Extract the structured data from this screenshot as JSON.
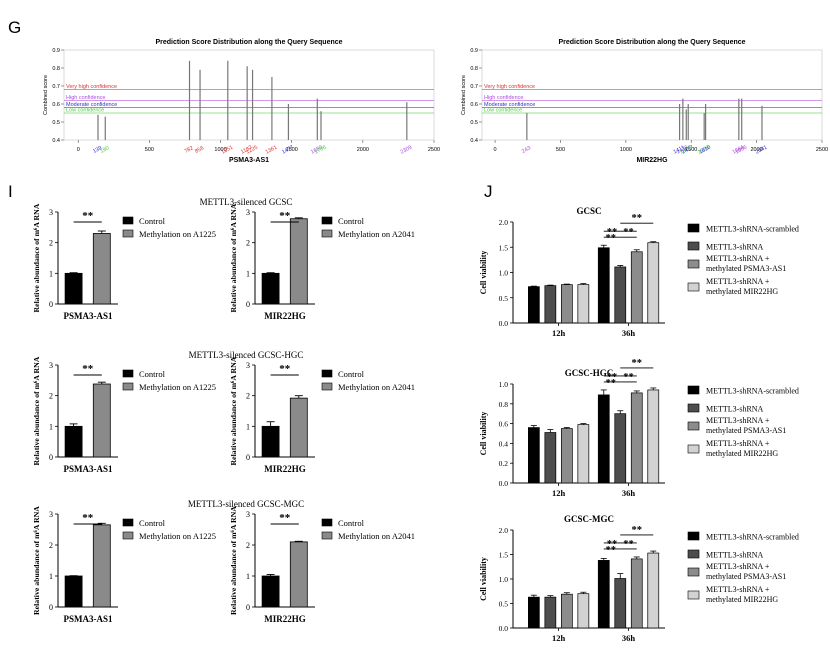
{
  "panel_letters": {
    "G": "G",
    "I": "I",
    "J": "J"
  },
  "chart_data": [
    {
      "id": "G1",
      "type": "line",
      "title": "Prediction Score Distribution along the Query Sequence",
      "xlabel": "PSMA3-AS1",
      "ylabel": "Combined score",
      "xlim": [
        -100,
        2500
      ],
      "ylim": [
        0.4,
        0.9
      ],
      "xticks": [
        0,
        500,
        1000,
        1500,
        2000,
        2500
      ],
      "yticks": [
        0.4,
        0.5,
        0.6,
        0.7,
        0.8,
        0.9
      ],
      "thresholds": [
        {
          "label": "Very high confidence",
          "value": 0.68,
          "color": "#e03030"
        },
        {
          "label": "High confidence",
          "value": 0.62,
          "color": "#b04ae0"
        },
        {
          "label": "Moderate confidence",
          "value": 0.58,
          "color": "#3030d0"
        },
        {
          "label": "Low confidence",
          "value": 0.55,
          "color": "#44cc44"
        }
      ],
      "sites": [
        {
          "x": 139,
          "y": 0.54,
          "label": "139",
          "color": "#3030d0"
        },
        {
          "x": 190,
          "y": 0.53,
          "label": "190",
          "color": "#44cc44"
        },
        {
          "x": 782,
          "y": 0.84,
          "label": "782",
          "color": "#e03030"
        },
        {
          "x": 856,
          "y": 0.79,
          "label": "856",
          "color": "#e03030"
        },
        {
          "x": 1051,
          "y": 0.84,
          "label": "1051",
          "color": "#e03030"
        },
        {
          "x": 1187,
          "y": 0.81,
          "label": "1187",
          "color": "#e03030"
        },
        {
          "x": 1225,
          "y": 0.79,
          "label": "1225",
          "color": "#e03030"
        },
        {
          "x": 1361,
          "y": 0.75,
          "label": "1361",
          "color": "#e03030"
        },
        {
          "x": 1477,
          "y": 0.6,
          "label": "1477",
          "color": "#3030d0"
        },
        {
          "x": 1680,
          "y": 0.63,
          "label": "1680",
          "color": "#b04ae0"
        },
        {
          "x": 1706,
          "y": 0.56,
          "label": "1706",
          "color": "#44cc44"
        },
        {
          "x": 2309,
          "y": 0.61,
          "label": "2309",
          "color": "#b04ae0"
        }
      ]
    },
    {
      "id": "G2",
      "type": "line",
      "title": "Prediction Score Distribution along the Query Sequence",
      "xlabel": "MIR22HG",
      "ylabel": "Combined score",
      "xlim": [
        -100,
        2500
      ],
      "ylim": [
        0.4,
        0.9
      ],
      "xticks": [
        0,
        500,
        1000,
        1500,
        2000,
        2500
      ],
      "yticks": [
        0.4,
        0.5,
        0.6,
        0.7,
        0.8,
        0.9
      ],
      "thresholds": [
        {
          "label": "Very high confidence",
          "value": 0.68,
          "color": "#e03030"
        },
        {
          "label": "High confidence",
          "value": 0.62,
          "color": "#b04ae0"
        },
        {
          "label": "Moderate confidence",
          "value": 0.58,
          "color": "#3030d0"
        },
        {
          "label": "Low confidence",
          "value": 0.55,
          "color": "#44cc44"
        }
      ],
      "sites": [
        {
          "x": 243,
          "y": 0.55,
          "label": "243",
          "color": "#b04ae0"
        },
        {
          "x": 1411,
          "y": 0.6,
          "label": "1411",
          "color": "#3030d0"
        },
        {
          "x": 1436,
          "y": 0.63,
          "label": "1436",
          "color": "#b04ae0"
        },
        {
          "x": 1462,
          "y": 0.57,
          "label": "1462",
          "color": "#44cc44"
        },
        {
          "x": 1477,
          "y": 0.6,
          "label": "1477",
          "color": "#3030d0"
        },
        {
          "x": 1599,
          "y": 0.55,
          "label": "1599",
          "color": "#44cc44"
        },
        {
          "x": 1610,
          "y": 0.6,
          "label": "1610",
          "color": "#3030d0"
        },
        {
          "x": 1864,
          "y": 0.63,
          "label": "1864",
          "color": "#b04ae0"
        },
        {
          "x": 1886,
          "y": 0.63,
          "label": "1886",
          "color": "#b04ae0"
        },
        {
          "x": 2041,
          "y": 0.59,
          "label": "2041",
          "color": "#3030d0"
        }
      ]
    },
    {
      "id": "I-a",
      "type": "bar",
      "title": "METTL3-silenced GCSC",
      "xlabel": "PSMA3-AS1",
      "ylabel": "Relative abundance of m⁶A RNA",
      "ylim": [
        0,
        3
      ],
      "yticks": [
        0,
        1,
        2,
        3
      ],
      "series": [
        {
          "name": "Control",
          "value": 1.0,
          "error": 0.02,
          "color": "#000000"
        },
        {
          "name": "Methylation on A1225",
          "value": 2.3,
          "error": 0.08,
          "color": "#8a8a8a"
        }
      ],
      "significance": "**"
    },
    {
      "id": "I-b",
      "type": "bar",
      "title": "",
      "xlabel": "MIR22HG",
      "ylabel": "Relative abundance of m⁶A RNA",
      "ylim": [
        0,
        3
      ],
      "yticks": [
        0,
        1,
        2,
        3
      ],
      "series": [
        {
          "name": "Control",
          "value": 1.0,
          "error": 0.02,
          "color": "#000000"
        },
        {
          "name": "Methylation on A2041",
          "value": 2.78,
          "error": 0.03,
          "color": "#8a8a8a"
        }
      ],
      "significance": "**"
    },
    {
      "id": "I-c",
      "type": "bar",
      "title": "METTL3-silenced GCSC-HGC",
      "xlabel": "PSMA3-AS1",
      "ylabel": "Relative abundance of m⁶A RNA",
      "ylim": [
        0,
        3
      ],
      "yticks": [
        0,
        1,
        2,
        3
      ],
      "series": [
        {
          "name": "Control",
          "value": 1.0,
          "error": 0.08,
          "color": "#000000"
        },
        {
          "name": "Methylation on A1225",
          "value": 2.38,
          "error": 0.06,
          "color": "#8a8a8a"
        }
      ],
      "significance": "**"
    },
    {
      "id": "I-d",
      "type": "bar",
      "title": "",
      "xlabel": "MIR22HG",
      "ylabel": "Relative abundance of m⁶A RNA",
      "ylim": [
        0,
        3
      ],
      "yticks": [
        0,
        1,
        2,
        3
      ],
      "series": [
        {
          "name": "Control",
          "value": 1.0,
          "error": 0.15,
          "color": "#000000"
        },
        {
          "name": "Methylation on A2041",
          "value": 1.92,
          "error": 0.08,
          "color": "#8a8a8a"
        }
      ],
      "significance": "**"
    },
    {
      "id": "I-e",
      "type": "bar",
      "title": "METTL3-silenced GCSC-MGC",
      "xlabel": "PSMA3-AS1",
      "ylabel": "Relative abundance of m⁶A RNA",
      "ylim": [
        0,
        3
      ],
      "yticks": [
        0,
        1,
        2,
        3
      ],
      "series": [
        {
          "name": "Control",
          "value": 1.0,
          "error": 0.01,
          "color": "#000000"
        },
        {
          "name": "Methylation on A1225",
          "value": 2.65,
          "error": 0.05,
          "color": "#8a8a8a"
        }
      ],
      "significance": "**"
    },
    {
      "id": "I-f",
      "type": "bar",
      "title": "",
      "xlabel": "MIR22HG",
      "ylabel": "Relative abundance of m⁶A RNA",
      "ylim": [
        0,
        3
      ],
      "yticks": [
        0,
        1,
        2,
        3
      ],
      "series": [
        {
          "name": "Control",
          "value": 1.0,
          "error": 0.05,
          "color": "#000000"
        },
        {
          "name": "Methylation on A2041",
          "value": 2.1,
          "error": 0.02,
          "color": "#8a8a8a"
        }
      ],
      "significance": "**"
    },
    {
      "id": "J-a",
      "type": "bar",
      "title": "GCSC",
      "xlabel": "",
      "ylabel": "Cell viability",
      "ylim": [
        0,
        2.0
      ],
      "yticks": [
        0.0,
        0.5,
        1.0,
        1.5,
        2.0
      ],
      "categories": [
        "12h",
        "36h"
      ],
      "series": [
        {
          "name": "METTL3-shRNA-scrambled",
          "values": [
            0.72,
            1.49
          ],
          "errors": [
            0.01,
            0.05
          ],
          "color": "#000000"
        },
        {
          "name": "METTL3-shRNA",
          "values": [
            0.74,
            1.11
          ],
          "errors": [
            0.01,
            0.03
          ],
          "color": "#4d4d4d"
        },
        {
          "name": "METTL3-shRNA + methylated PSMA3-AS1",
          "values": [
            0.76,
            1.41
          ],
          "errors": [
            0.01,
            0.04
          ],
          "color": "#8c8c8c"
        },
        {
          "name": "METTL3-shRNA + methylated MIR22HG",
          "values": [
            0.76,
            1.59
          ],
          "errors": [
            0.02,
            0.02
          ],
          "color": "#d2d2d2"
        }
      ],
      "significance_marks": [
        "**",
        "**",
        "**",
        "**"
      ]
    },
    {
      "id": "J-b",
      "type": "bar",
      "title": "GCSC-HGC",
      "xlabel": "",
      "ylabel": "Cell viability",
      "ylim": [
        0,
        1.0
      ],
      "yticks": [
        0.0,
        0.2,
        0.4,
        0.6,
        0.8,
        1.0
      ],
      "categories": [
        "12h",
        "36h"
      ],
      "series": [
        {
          "name": "METTL3-shRNA-scrambled",
          "values": [
            0.56,
            0.89
          ],
          "errors": [
            0.02,
            0.05
          ],
          "color": "#000000"
        },
        {
          "name": "METTL3-shRNA",
          "values": [
            0.51,
            0.7
          ],
          "errors": [
            0.03,
            0.03
          ],
          "color": "#4d4d4d"
        },
        {
          "name": "METTL3-shRNA + methylated PSMA3-AS1",
          "values": [
            0.55,
            0.91
          ],
          "errors": [
            0.01,
            0.02
          ],
          "color": "#8c8c8c"
        },
        {
          "name": "METTL3-shRNA + methylated MIR22HG",
          "values": [
            0.59,
            0.94
          ],
          "errors": [
            0.01,
            0.02
          ],
          "color": "#d2d2d2"
        }
      ],
      "significance_marks": [
        "**",
        "**",
        "**",
        "**"
      ]
    },
    {
      "id": "J-c",
      "type": "bar",
      "title": "GCSC-MGC",
      "xlabel": "",
      "ylabel": "Cell viability",
      "ylim": [
        0,
        2.0
      ],
      "yticks": [
        0.0,
        0.5,
        1.0,
        1.5,
        2.0
      ],
      "categories": [
        "12h",
        "36h"
      ],
      "series": [
        {
          "name": "METTL3-shRNA-scrambled",
          "values": [
            0.63,
            1.38
          ],
          "errors": [
            0.04,
            0.04
          ],
          "color": "#000000"
        },
        {
          "name": "METTL3-shRNA",
          "values": [
            0.63,
            1.01
          ],
          "errors": [
            0.03,
            0.1
          ],
          "color": "#4d4d4d"
        },
        {
          "name": "METTL3-shRNA + methylated PSMA3-AS1",
          "values": [
            0.69,
            1.41
          ],
          "errors": [
            0.03,
            0.04
          ],
          "color": "#8c8c8c"
        },
        {
          "name": "METTL3-shRNA + methylated MIR22HG",
          "values": [
            0.7,
            1.53
          ],
          "errors": [
            0.03,
            0.04
          ],
          "color": "#d2d2d2"
        }
      ],
      "significance_marks": [
        "**",
        "**",
        "**",
        "**"
      ]
    }
  ]
}
